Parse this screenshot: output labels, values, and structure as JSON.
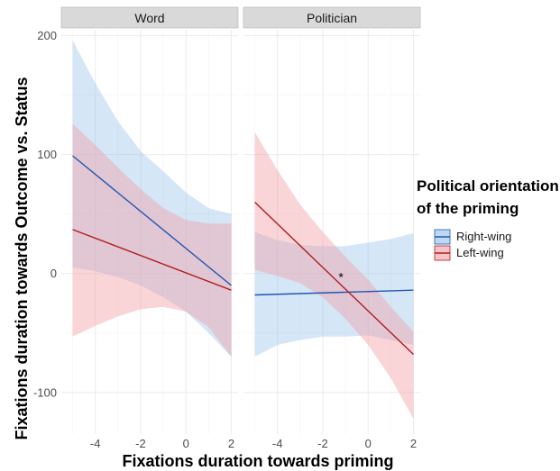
{
  "chart_data": {
    "type": "line",
    "xlabel": "Fixations duration towards priming",
    "ylabel": "Fixations duration towards Outcome vs. Status",
    "xlim": [
      -5.5,
      2.3
    ],
    "ylim": [
      -135,
      205
    ],
    "x_ticks": [
      -4,
      -2,
      0,
      2
    ],
    "x_tick_labels": [
      "-4",
      "-2",
      "0",
      "2"
    ],
    "y_ticks": [
      -100,
      0,
      100,
      200
    ],
    "y_tick_labels": [
      "-100",
      "0",
      "100",
      "200"
    ],
    "grid": true,
    "legend": {
      "title_line1": "Political orientation",
      "title_line2": "of the priming",
      "position": "right",
      "entries": [
        {
          "name": "Right-wing",
          "color": "#2056b0",
          "fill": "#bfd8f2"
        },
        {
          "name": "Left-wing",
          "color": "#b01c1c",
          "fill": "#f6c3c6"
        }
      ]
    },
    "colors": {
      "right_line": "#2056b0",
      "right_fill": "#9cc4ec",
      "left_line": "#b01c1c",
      "left_fill": "#f29ba3",
      "strip_bg": "#d9d9d9",
      "grid": "#ebebeb"
    },
    "panels": [
      {
        "title": "Word",
        "series": [
          {
            "name": "Right-wing",
            "x": [
              -5,
              2
            ],
            "y": [
              99,
              -10
            ],
            "band_x": [
              -5,
              -4,
              -3,
              -2,
              -1,
              0,
              1,
              2
            ],
            "band_lower": [
              5,
              2,
              -3,
              -10,
              -20,
              -32,
              -50,
              -70
            ],
            "band_upper": [
              196,
              160,
              128,
              103,
              86,
              68,
              55,
              50
            ]
          },
          {
            "name": "Left-wing",
            "x": [
              -5,
              2
            ],
            "y": [
              37,
              -14
            ],
            "band_x": [
              -5,
              -4,
              -3,
              -2,
              -1,
              0,
              1,
              2
            ],
            "band_lower": [
              -53,
              -44,
              -36,
              -30,
              -28,
              -32,
              -45,
              -70
            ],
            "band_upper": [
              126,
              108,
              89,
              71,
              55,
              45,
              42,
              42
            ]
          }
        ]
      },
      {
        "title": "Politician",
        "annotation": "*",
        "annotation_x": -1.2,
        "annotation_y": -3,
        "series": [
          {
            "name": "Right-wing",
            "x": [
              -5,
              2
            ],
            "y": [
              -18,
              -14
            ],
            "band_x": [
              -5,
              -4,
              -3,
              -2,
              -1,
              0,
              1,
              2
            ],
            "band_lower": [
              -70,
              -60,
              -56,
              -53,
              -53,
              -52,
              -56,
              -60
            ],
            "band_upper": [
              35,
              28,
              24,
              23,
              23,
              26,
              29,
              34
            ]
          },
          {
            "name": "Left-wing",
            "x": [
              -5,
              2
            ],
            "y": [
              60,
              -68
            ],
            "band_x": [
              -5,
              -4,
              -3,
              -2,
              -1,
              0,
              1,
              2
            ],
            "band_lower": [
              3,
              -2,
              -8,
              -20,
              -38,
              -60,
              -88,
              -122
            ],
            "band_upper": [
              119,
              87,
              58,
              35,
              14,
              -5,
              -28,
              -49
            ]
          }
        ]
      }
    ]
  }
}
